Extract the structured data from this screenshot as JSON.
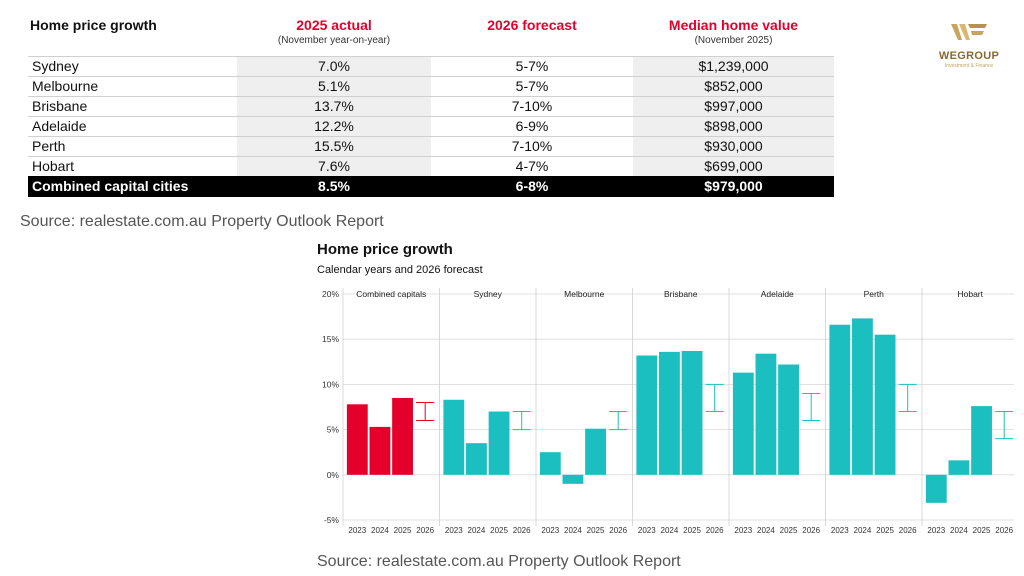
{
  "table": {
    "header": {
      "city": "Home price growth",
      "actual": "2025 actual",
      "actual_sub": "(November year-on-year)",
      "forecast": "2026 forecast",
      "median": "Median home value",
      "median_sub": "(November 2025)"
    },
    "rows": [
      {
        "city": "Sydney",
        "actual": "7.0%",
        "forecast": "5-7%",
        "median": "$1,239,000"
      },
      {
        "city": "Melbourne",
        "actual": "5.1%",
        "forecast": "5-7%",
        "median": "$852,000"
      },
      {
        "city": "Brisbane",
        "actual": "13.7%",
        "forecast": "7-10%",
        "median": "$997,000"
      },
      {
        "city": "Adelaide",
        "actual": "12.2%",
        "forecast": "6-9%",
        "median": "$898,000"
      },
      {
        "city": "Perth",
        "actual": "15.5%",
        "forecast": "7-10%",
        "median": "$930,000"
      },
      {
        "city": "Hobart",
        "actual": "7.6%",
        "forecast": "4-7%",
        "median": "$699,000"
      }
    ],
    "total": {
      "city": "Combined capital cities",
      "actual": "8.5%",
      "forecast": "6-8%",
      "median": "$979,000"
    }
  },
  "source_top": "Source: realestate.com.au Property Outlook Report",
  "source_bottom": "Source: realestate.com.au Property Outlook Report",
  "logo": {
    "name": "WEGROUP",
    "tagline": "Investment & Finance",
    "color": "#8a6a2c"
  },
  "chart_title": "Home price growth",
  "chart_subtitle": "Calendar years and 2026 forecast",
  "chart_data": {
    "type": "bar",
    "title": "Home price growth",
    "subtitle": "Calendar years and 2026 forecast",
    "ylim": [
      -5,
      20
    ],
    "yticks": [
      -5,
      0,
      5,
      10,
      15,
      20
    ],
    "ytick_labels": [
      "-5%",
      "0%",
      "5%",
      "10%",
      "15%",
      "20%"
    ],
    "categories": [
      "2023",
      "2024",
      "2025",
      "2026"
    ],
    "colors": {
      "combined": "#e4002b",
      "city": "#1bbfbf",
      "grid": "#d9d9d9"
    },
    "panels": [
      {
        "name": "Combined capitals",
        "values": [
          7.8,
          5.3,
          8.5
        ],
        "forecast": [
          6,
          8
        ],
        "highlight": true
      },
      {
        "name": "Sydney",
        "values": [
          8.3,
          3.5,
          7.0
        ],
        "forecast": [
          5,
          7
        ]
      },
      {
        "name": "Melbourne",
        "values": [
          2.5,
          -1.0,
          5.1
        ],
        "forecast": [
          5,
          7
        ]
      },
      {
        "name": "Brisbane",
        "values": [
          13.2,
          13.6,
          13.7
        ],
        "forecast": [
          7,
          10
        ]
      },
      {
        "name": "Adelaide",
        "values": [
          11.3,
          13.4,
          12.2
        ],
        "forecast": [
          6,
          9
        ]
      },
      {
        "name": "Perth",
        "values": [
          16.6,
          17.3,
          15.5
        ],
        "forecast": [
          7,
          10
        ]
      },
      {
        "name": "Hobart",
        "values": [
          -3.1,
          1.6,
          7.6
        ],
        "forecast": [
          4,
          7
        ]
      }
    ]
  }
}
